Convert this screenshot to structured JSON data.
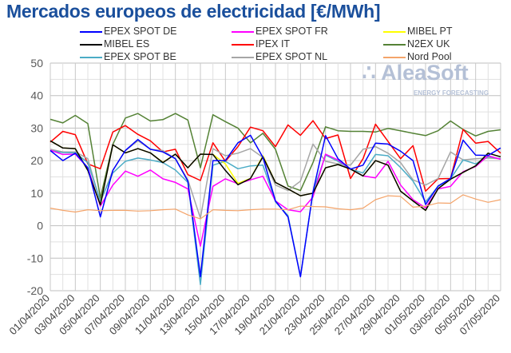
{
  "chart_data": {
    "type": "line",
    "title": "Mercados europeos de electricidad [€/MWh]",
    "xlabel": "",
    "ylabel": "",
    "ylim": [
      -20,
      50
    ],
    "yticks": [
      "50",
      "40",
      "30",
      "20",
      "10",
      "0",
      "-10",
      "-20"
    ],
    "grid": true,
    "legend_position": "top",
    "x": [
      "01/04/2020",
      "02/04/2020",
      "03/04/2020",
      "04/04/2020",
      "05/04/2020",
      "06/04/2020",
      "07/04/2020",
      "08/04/2020",
      "09/04/2020",
      "10/04/2020",
      "11/04/2020",
      "12/04/2020",
      "13/04/2020",
      "14/04/2020",
      "15/04/2020",
      "16/04/2020",
      "17/04/2020",
      "18/04/2020",
      "19/04/2020",
      "20/04/2020",
      "21/04/2020",
      "22/04/2020",
      "23/04/2020",
      "24/04/2020",
      "25/04/2020",
      "26/04/2020",
      "27/04/2020",
      "28/04/2020",
      "29/04/2020",
      "30/04/2020",
      "01/05/2020",
      "02/05/2020",
      "03/05/2020",
      "04/05/2020",
      "05/05/2020",
      "06/05/2020",
      "07/05/2020"
    ],
    "xtick_labels": [
      "01/04/2020",
      "03/04/2020",
      "05/04/2020",
      "07/04/2020",
      "09/04/2020",
      "11/04/2020",
      "13/04/2020",
      "15/04/2020",
      "17/04/2020",
      "19/04/2020",
      "21/04/2020",
      "23/04/2020",
      "25/04/2020",
      "27/04/2020",
      "29/04/2020",
      "01/05/2020",
      "03/05/2020",
      "05/05/2020",
      "07/05/2020"
    ],
    "series": [
      {
        "name": "N2EX UK",
        "color": "#548235",
        "values": [
          32.7,
          31.6,
          33.9,
          31.4,
          8.5,
          25,
          33.1,
          34.5,
          32.2,
          32.6,
          34.5,
          32.5,
          17.8,
          34.1,
          32,
          30,
          25.5,
          28.4,
          23.5,
          12.2,
          10.8,
          19.4,
          30.4,
          29.2,
          29,
          29,
          28.8,
          29.9,
          29.2,
          28.4,
          27.7,
          29.2,
          32.2,
          29.6,
          27.6,
          29,
          29.5
        ]
      },
      {
        "name": "IPEX IT",
        "color": "#ff0000",
        "values": [
          25.7,
          29,
          28,
          19,
          17.5,
          28.8,
          30.8,
          28.1,
          26.1,
          22.7,
          23.5,
          15.7,
          13.9,
          25.5,
          19.8,
          24.3,
          30.3,
          29.2,
          24.3,
          31,
          27.8,
          32.3,
          26.8,
          27.9,
          14.5,
          20.6,
          31.2,
          25.9,
          20.6,
          24.6,
          10.6,
          14.4,
          14.5,
          29.6,
          25.4,
          25.9,
          22.3
        ]
      },
      {
        "name": "EPEX SPOT NL",
        "color": "#a6a6a6",
        "values": [
          23.5,
          22.7,
          22.7,
          20.6,
          7.2,
          17,
          23.1,
          26.1,
          23.5,
          23.1,
          20.6,
          14.1,
          2.3,
          23.7,
          21.5,
          22.3,
          23.7,
          21,
          12.5,
          10.8,
          13.7,
          25.1,
          19.8,
          19,
          18.6,
          23.5,
          24.3,
          22.3,
          19.4,
          14.1,
          12.5,
          14.5,
          22.7,
          20.2,
          20.6,
          20.8,
          20.6
        ]
      },
      {
        "name": "EPEX SPOT BE",
        "color": "#4bacc6",
        "values": [
          23.1,
          22.5,
          22.4,
          19.4,
          7.6,
          16.2,
          19.8,
          20.8,
          20.2,
          19.4,
          17.1,
          13.3,
          -18.1,
          18.6,
          19.8,
          17.5,
          18.4,
          18.6,
          7.3,
          3.1,
          -15.7,
          10.4,
          21.7,
          19.8,
          17.4,
          16.2,
          21.9,
          21.5,
          17.9,
          13.7,
          7.3,
          12.1,
          14.4,
          20.2,
          19,
          21.2,
          20.6
        ]
      },
      {
        "name": "EPEX SPOT FR",
        "color": "#ff00ff",
        "values": [
          23.2,
          21.9,
          22,
          17.8,
          6,
          12.5,
          16.8,
          15.2,
          17.1,
          14.4,
          13.3,
          11.3,
          -6.3,
          12.1,
          14.4,
          12.9,
          14.1,
          15.2,
          7.6,
          4.9,
          4.3,
          8.8,
          22,
          20.2,
          17.4,
          15.3,
          14.7,
          19.8,
          12.5,
          8,
          5.5,
          11.3,
          12.1,
          16.6,
          18.2,
          21.5,
          20.4
        ]
      },
      {
        "name": "MIBEL PT",
        "color": "#ffff00",
        "values": [
          26.1,
          23.9,
          23.7,
          17,
          6.4,
          24.9,
          22.4,
          23.7,
          22.4,
          19.5,
          22,
          17.8,
          22,
          21.9,
          19,
          13,
          14.5,
          21.5,
          13.3,
          11.3,
          9.2,
          10,
          17.8,
          18.8,
          17.4,
          15.3,
          20,
          18.6,
          10.6,
          7.6,
          4.7,
          11.4,
          14.3,
          16.4,
          18.4,
          22.3,
          21.2
        ]
      },
      {
        "name": "MIBEL ES",
        "color": "#000000",
        "values": [
          26.1,
          23.9,
          23.7,
          17,
          6.4,
          24.9,
          22.4,
          23.7,
          22.4,
          19.4,
          22,
          17.8,
          22,
          21.9,
          17,
          12.6,
          14.5,
          21.2,
          13.3,
          11.3,
          9.2,
          10,
          17.8,
          18.8,
          17.4,
          15.3,
          20,
          18.6,
          10.6,
          7.6,
          4.7,
          11.4,
          14.3,
          16.4,
          18.4,
          22.3,
          21.2
        ]
      },
      {
        "name": "EPEX SPOT DE",
        "color": "#0000ff",
        "values": [
          23.1,
          20,
          22.3,
          17.8,
          2.7,
          17,
          23.1,
          26.5,
          23.5,
          22.7,
          20.6,
          13.7,
          -15.7,
          20,
          20,
          25.5,
          27.8,
          21,
          7.6,
          2.7,
          -15.7,
          10.4,
          27.7,
          20.6,
          17.4,
          18.6,
          25.4,
          25.1,
          22.9,
          20,
          6.5,
          12.2,
          14.5,
          26.3,
          21.7,
          21.6,
          23.9
        ]
      },
      {
        "name": "Nord Pool",
        "color": "#f4a46a",
        "values": [
          5.4,
          4.7,
          4.2,
          4.9,
          4.6,
          4.7,
          4.7,
          4.5,
          4.6,
          4.9,
          5.1,
          3.3,
          2.1,
          4.9,
          4.7,
          4.6,
          4.9,
          5.1,
          5.1,
          4.9,
          6,
          5.9,
          5.8,
          5.2,
          4.9,
          5.4,
          8,
          9.2,
          9,
          5.7,
          6,
          7,
          6.9,
          9.5,
          8.2,
          7.2,
          8
        ]
      }
    ],
    "legend_order": [
      "EPEX SPOT DE",
      "EPEX SPOT FR",
      "MIBEL PT",
      "MIBEL ES",
      "IPEX IT",
      "N2EX UK",
      "EPEX SPOT BE",
      "EPEX SPOT NL",
      "Nord Pool"
    ]
  },
  "logo": {
    "name": "AleaSoft",
    "tagline": "ENERGY FORECASTING"
  }
}
